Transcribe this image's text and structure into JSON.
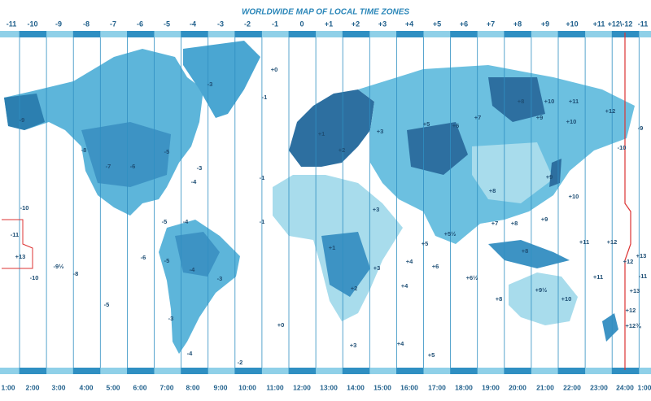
{
  "title": "WORLDWIDE MAP OF LOCAL TIME ZONES",
  "top_labels": [
    "-11",
    "-10",
    "-9",
    "-8",
    "-7",
    "-6",
    "-5",
    "-4",
    "-3",
    "-2",
    "-1",
    "0",
    "+1",
    "+2",
    "+3",
    "+4",
    "+5",
    "+6",
    "+7",
    "+8",
    "+9",
    "+10",
    "+11",
    "+12\\-12",
    "-11"
  ],
  "bottom_labels": [
    "1:00",
    "2:00",
    "3:00",
    "4:00",
    "5:00",
    "6:00",
    "7:00",
    "8:00",
    "9:00",
    "10:00",
    "11:00",
    "12:00",
    "13:00",
    "14:00",
    "15:00",
    "16:00",
    "17:00",
    "18:00",
    "19:00",
    "20:00",
    "21:00",
    "22:00",
    "23:00",
    "24:00",
    "1:00"
  ],
  "zone_labels": [
    "-9",
    "-8",
    "-7",
    "-6",
    "-5",
    "-4",
    "-3",
    "-3",
    "-10",
    "-11",
    "+13",
    "-9½",
    "-10",
    "-8",
    "-5",
    "-6",
    "-5",
    "-4",
    "-5",
    "-4",
    "-3",
    "-3",
    "-4",
    "-2",
    "-1",
    "-1",
    "+0",
    "-1",
    "+0",
    "+1",
    "+2",
    "+3",
    "+1",
    "+2",
    "+3",
    "+5",
    "+6",
    "+7",
    "+8",
    "+9",
    "+10",
    "+11",
    "+12",
    "+10",
    "+8",
    "+9",
    "+10",
    "+5",
    "+6",
    "+5½",
    "+6½",
    "+7",
    "+8",
    "+8",
    "+9",
    "+8",
    "+9½",
    "+10",
    "+11",
    "+12",
    "+11",
    "+12",
    "+13",
    "+12",
    "+12¾",
    "+13",
    "-11",
    "+4",
    "+4",
    "+4",
    "+3",
    "+5",
    "+3",
    "-10",
    "-9"
  ]
}
